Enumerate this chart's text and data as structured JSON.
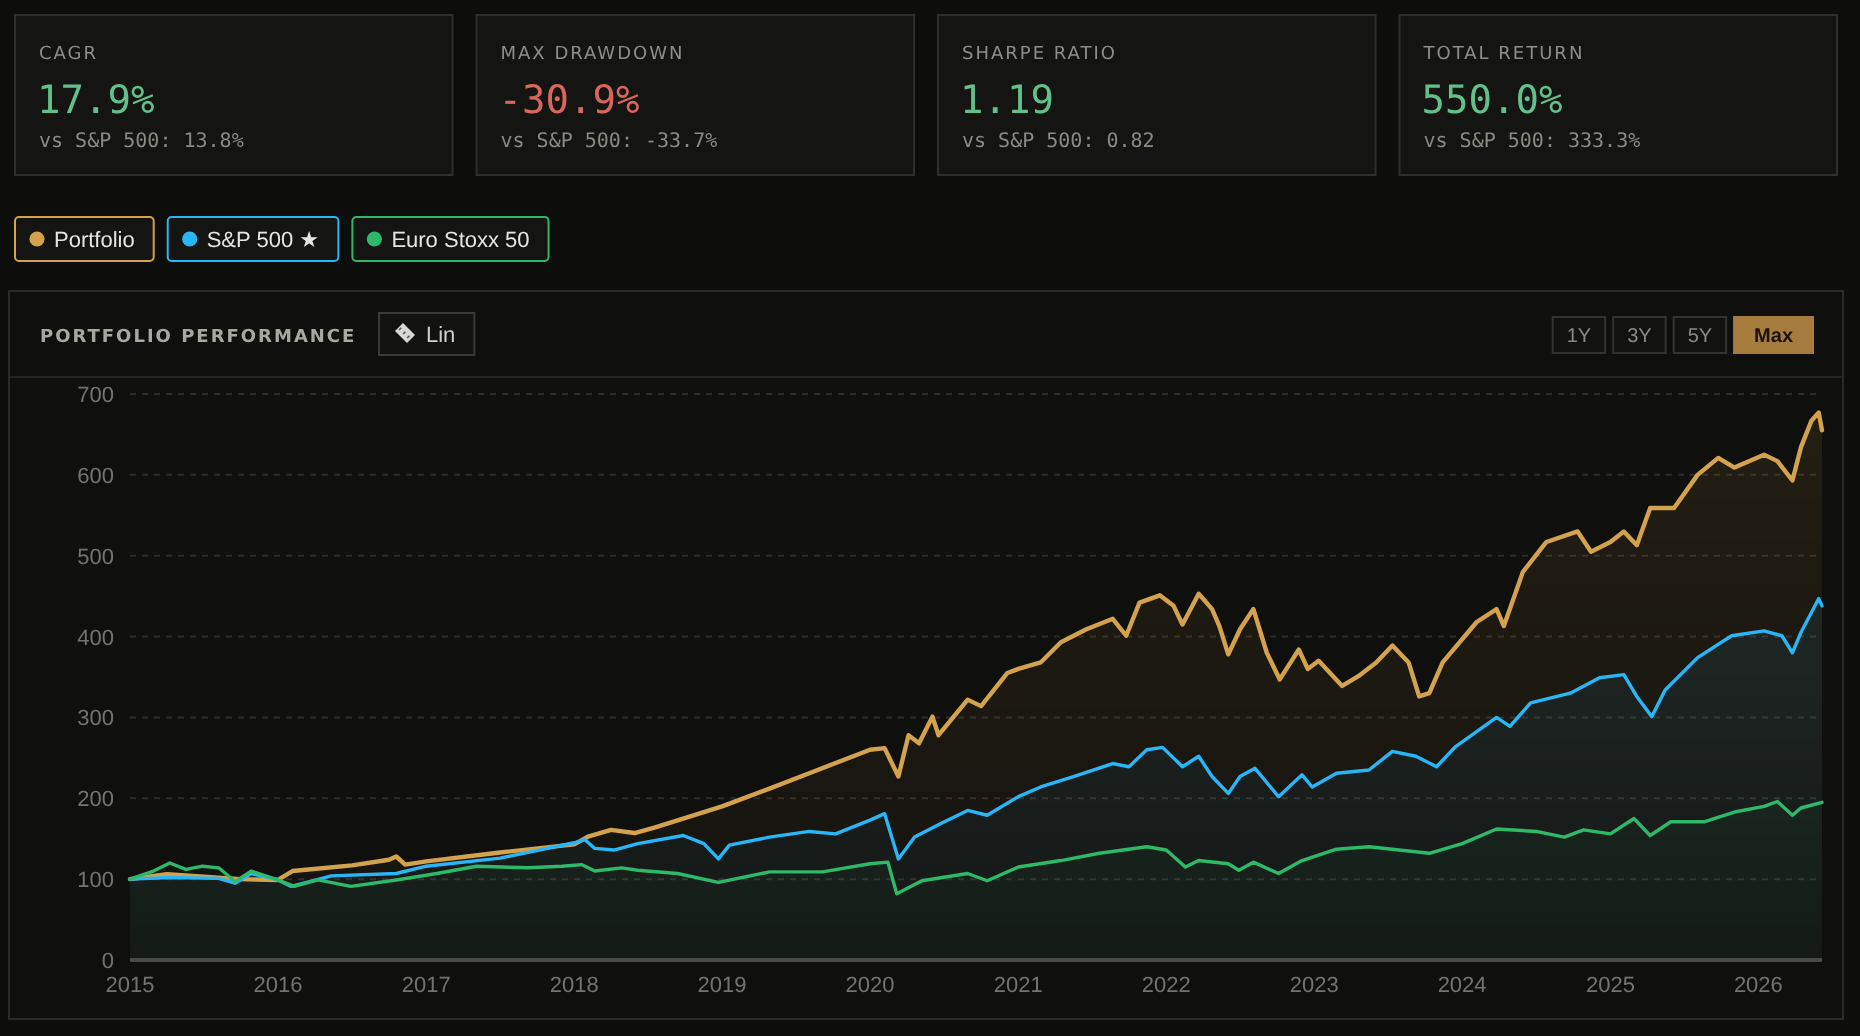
{
  "chart_data": [
    {
      "type": "other",
      "title": "CAGR",
      "color": "#63c08a",
      "annotations": [
        "17.9%",
        "vs S&P 500: 13.8%"
      ]
    },
    {
      "type": "other",
      "title": "MAX DRAWDOWN",
      "color": "#d9665c",
      "annotations": [
        "-30.9%",
        "vs S&P 500: -33.7%"
      ]
    },
    {
      "type": "other",
      "title": "SHARPE RATIO",
      "color": "#63c08a",
      "annotations": [
        "1.19",
        "vs S&P 500: 0.82"
      ]
    },
    {
      "type": "other",
      "title": "TOTAL RETURN",
      "color": "#63c08a",
      "annotations": [
        "550.0%",
        "vs S&P 500: 333.3%"
      ]
    },
    {
      "type": "area",
      "title": "PORTFOLIO PERFORMANCE",
      "annotations": [
        "Lin",
        "1Y",
        "3Y",
        "5Y",
        "Max"
      ],
      "xlim": [
        "2015-01-01",
        "2026-06-07"
      ],
      "xticks": [
        "2015",
        "2016",
        "2017",
        "2018",
        "2019",
        "2020",
        "2021",
        "2022",
        "2023",
        "2024",
        "2025",
        "2026"
      ],
      "ylim": [
        0,
        700
      ],
      "yticks": [
        0,
        100,
        200,
        300,
        400,
        500,
        600,
        700
      ],
      "grid": "y",
      "legend": "top left",
      "series": [
        {
          "name": "Portfolio",
          "color": "#d4a24c",
          "x": [
            "2015-01-01",
            "2015-04-02",
            "2015-10-01",
            "2016-01-01",
            "2016-02-06",
            "2016-07-02",
            "2016-10-01",
            "2016-10-19",
            "2016-11-10",
            "2017-01-01",
            "2017-07-02",
            "2018-01-01",
            "2018-02-06",
            "2018-04-02",
            "2018-05-30",
            "2018-07-20",
            "2019-01-01",
            "2019-04-28",
            "2019-08-04",
            "2020-01-01",
            "2020-02-06",
            "2020-03-11",
            "2020-04-05",
            "2020-05-01",
            "2020-06-03",
            "2020-06-18",
            "2020-08-29",
            "2020-10-01",
            "2020-12-05",
            "2021-01-01",
            "2021-02-25",
            "2021-04-16",
            "2021-06-18",
            "2021-08-22",
            "2021-09-24",
            "2021-10-27",
            "2021-12-16",
            "2022-01-19",
            "2022-02-10",
            "2022-03-22",
            "2022-04-24",
            "2022-05-12",
            "2022-06-03",
            "2022-07-02",
            "2022-08-04",
            "2022-09-06",
            "2022-10-08",
            "2022-11-24",
            "2022-12-16",
            "2023-01-12",
            "2023-03-11",
            "2023-04-20",
            "2023-06-03",
            "2023-07-13",
            "2023-08-22",
            "2023-09-17",
            "2023-10-12",
            "2023-11-14",
            "2024-02-06",
            "2024-03-26",
            "2024-04-13",
            "2024-05-30",
            "2024-07-27",
            "2024-10-12",
            "2024-11-14",
            "2025-01-01",
            "2025-02-03",
            "2025-03-07",
            "2025-04-09",
            "2025-06-07",
            "2025-08-04",
            "2025-09-24",
            "2025-11-03",
            "2026-01-15",
            "2026-02-17",
            "2026-03-26",
            "2026-04-16",
            "2026-05-12",
            "2026-05-30",
            "2026-06-07"
          ],
          "values": [
            100,
            106,
            100,
            99,
            110,
            117,
            124,
            128,
            118,
            122,
            133,
            143,
            153,
            161,
            157,
            164,
            190,
            212,
            231,
            260,
            262,
            227,
            278,
            268,
            301,
            278,
            322,
            314,
            355,
            360,
            368,
            393,
            409,
            422,
            401,
            442,
            451,
            438,
            415,
            453,
            434,
            413,
            378,
            409,
            434,
            380,
            347,
            384,
            360,
            370,
            339,
            351,
            368,
            389,
            368,
            326,
            330,
            368,
            418,
            434,
            413,
            480,
            517,
            530,
            505,
            517,
            530,
            513,
            559,
            559,
            600,
            621,
            609,
            625,
            617,
            593,
            634,
            667,
            677,
            655
          ]
        },
        {
          "name": "S&P 500 ★",
          "color": "#29b6f6",
          "x": [
            "2015-01-01",
            "2015-04-09",
            "2015-08-08",
            "2015-09-17",
            "2015-10-27",
            "2016-01-01",
            "2016-02-03",
            "2016-05-12",
            "2016-10-19",
            "2017-01-01",
            "2017-07-02",
            "2018-01-01",
            "2018-01-27",
            "2018-02-21",
            "2018-04-09",
            "2018-06-07",
            "2018-09-27",
            "2018-11-17",
            "2018-12-23",
            "2019-01-19",
            "2019-04-28",
            "2019-08-04",
            "2019-10-08",
            "2020-01-01",
            "2020-02-06",
            "2020-03-11",
            "2020-04-20",
            "2020-06-25",
            "2020-08-29",
            "2020-10-16",
            "2021-01-01",
            "2021-02-25",
            "2021-05-19",
            "2021-08-22",
            "2021-10-01",
            "2021-11-14",
            "2021-12-23",
            "2022-02-10",
            "2022-03-22",
            "2022-04-24",
            "2022-06-03",
            "2022-07-02",
            "2022-08-08",
            "2022-10-05",
            "2022-12-02",
            "2022-12-27",
            "2023-02-25",
            "2023-05-16",
            "2023-07-13",
            "2023-09-09",
            "2023-10-30",
            "2023-12-16",
            "2024-03-26",
            "2024-04-28",
            "2024-06-18",
            "2024-09-24",
            "2024-12-05",
            "2025-02-03",
            "2025-03-07",
            "2025-04-13",
            "2025-05-16",
            "2025-08-04",
            "2025-10-27",
            "2026-01-15",
            "2026-02-28",
            "2026-03-26",
            "2026-04-16",
            "2026-05-30",
            "2026-06-07"
          ],
          "values": [
            100,
            102,
            101,
            95,
            107,
            99,
            91,
            104,
            107,
            116,
            126,
            145,
            149,
            138,
            136,
            144,
            154,
            144,
            125,
            142,
            152,
            159,
            156,
            173,
            181,
            125,
            152,
            169,
            185,
            179,
            202,
            214,
            227,
            243,
            239,
            260,
            263,
            239,
            252,
            227,
            206,
            227,
            237,
            202,
            229,
            214,
            231,
            235,
            258,
            252,
            239,
            264,
            300,
            289,
            318,
            330,
            349,
            353,
            326,
            301,
            334,
            374,
            401,
            407,
            401,
            380,
            405,
            447,
            438
          ]
        },
        {
          "name": "Euro Stoxx 50",
          "color": "#2db86a",
          "x": [
            "2015-01-01",
            "2015-02-28",
            "2015-04-09",
            "2015-05-19",
            "2015-06-29",
            "2015-08-08",
            "2015-09-17",
            "2015-10-27",
            "2016-01-01",
            "2016-02-10",
            "2016-04-09",
            "2016-06-29",
            "2016-10-19",
            "2017-01-27",
            "2017-05-05",
            "2017-09-09",
            "2017-12-02",
            "2018-01-19",
            "2018-02-21",
            "2018-04-28",
            "2018-06-07",
            "2018-09-13",
            "2018-12-23",
            "2019-04-28",
            "2019-09-06",
            "2020-01-01",
            "2020-02-14",
            "2020-03-07",
            "2020-05-08",
            "2020-08-29",
            "2020-10-16",
            "2021-01-01",
            "2021-04-16",
            "2021-07-20",
            "2021-11-14",
            "2022-01-01",
            "2022-02-17",
            "2022-03-22",
            "2022-06-03",
            "2022-06-29",
            "2022-08-04",
            "2022-10-05",
            "2022-12-02",
            "2023-02-25",
            "2023-05-16",
            "2023-10-12",
            "2024-01-01",
            "2024-03-26",
            "2024-07-02",
            "2024-09-09",
            "2024-10-27",
            "2025-01-01",
            "2025-02-28",
            "2025-04-09",
            "2025-05-30",
            "2025-08-22",
            "2025-11-03",
            "2026-01-15",
            "2026-02-17",
            "2026-03-26",
            "2026-04-16",
            "2026-06-07"
          ],
          "values": [
            100,
            110,
            120,
            112,
            116,
            114,
            97,
            110,
            99,
            91,
            99,
            91,
            99,
            107,
            116,
            114,
            116,
            118,
            110,
            114,
            111,
            107,
            96,
            109,
            109,
            119,
            121,
            82,
            98,
            107,
            98,
            115,
            123,
            132,
            140,
            136,
            115,
            123,
            119,
            111,
            121,
            107,
            123,
            137,
            140,
            132,
            144,
            162,
            159,
            152,
            161,
            156,
            175,
            154,
            171,
            171,
            183,
            190,
            196,
            179,
            188,
            195
          ]
        }
      ]
    }
  ]
}
